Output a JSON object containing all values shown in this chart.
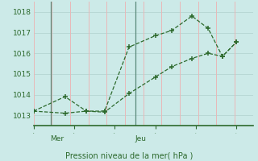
{
  "title": "Pression niveau de la mer( hPa )",
  "background_color": "#cceae8",
  "line_color": "#2d6a2d",
  "grid_color_h": "#b8d8d5",
  "grid_color_v": "#e8b8b8",
  "vline_color": "#5a8a7a",
  "ylim": [
    1012.5,
    1018.5
  ],
  "yticks": [
    1013,
    1014,
    1015,
    1016,
    1017,
    1018
  ],
  "day_labels": [
    "Mer",
    "Jeu"
  ],
  "vline_x": [
    0.083,
    0.5
  ],
  "series1_x": [
    0.0,
    0.155,
    0.26,
    0.35,
    0.47,
    0.6,
    0.68,
    0.78,
    0.86,
    0.93,
    1.0
  ],
  "series1_y": [
    1013.2,
    1013.9,
    1013.2,
    1013.2,
    1016.3,
    1016.85,
    1017.1,
    1017.8,
    1017.2,
    1015.85,
    1016.55
  ],
  "series2_x": [
    0.0,
    0.155,
    0.26,
    0.35,
    0.47,
    0.6,
    0.68,
    0.78,
    0.86,
    0.93,
    1.0
  ],
  "series2_y": [
    1013.2,
    1013.1,
    1013.2,
    1013.15,
    1014.05,
    1014.85,
    1015.35,
    1015.75,
    1016.0,
    1015.85,
    1016.55
  ],
  "xlim": [
    0.0,
    1.08
  ]
}
